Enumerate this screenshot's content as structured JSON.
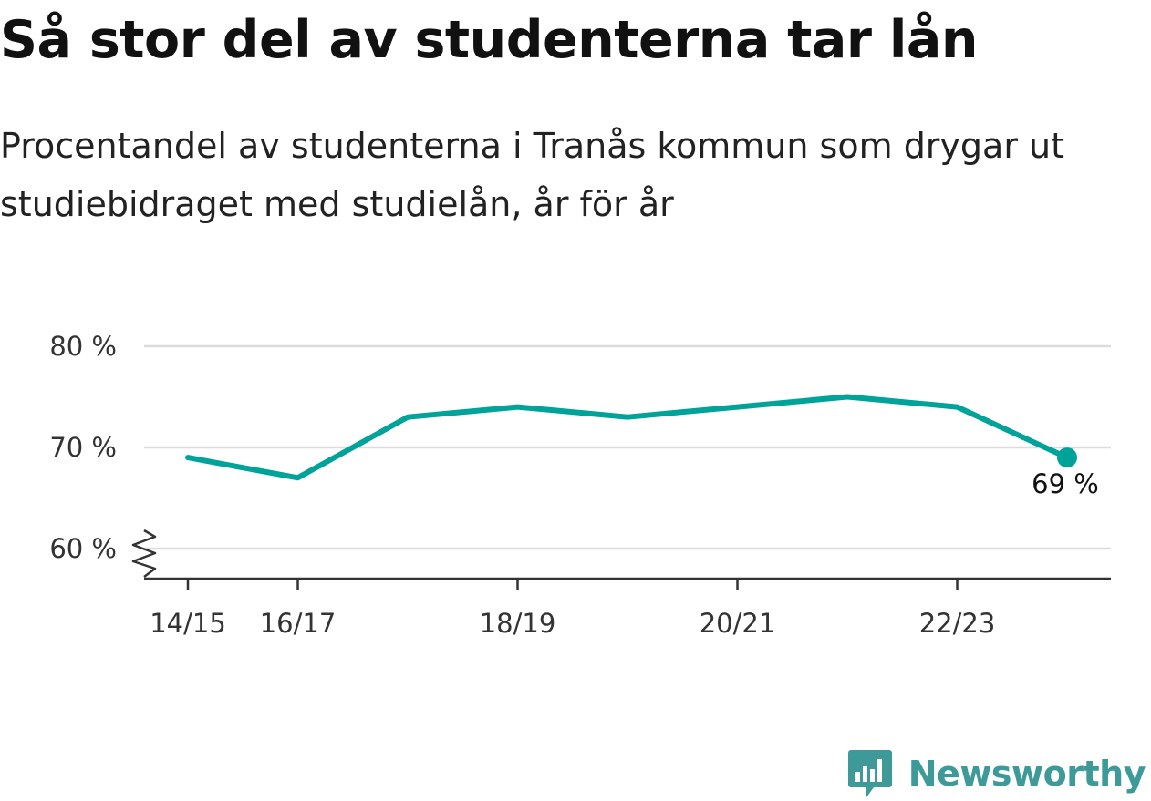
{
  "title": "Så stor del av studenterna tar lån",
  "subtitle": "Procentandel av studenterna i Tranås kommun som drygar ut studiebidraget med studielån, år för år",
  "brand": {
    "name": "Newsworthy",
    "logo_icon": "bar-chart-speech-bubble-icon",
    "color": "#3d9a99"
  },
  "chart_data": {
    "type": "line",
    "x": [
      "14/15",
      "16/17",
      "17/18",
      "18/19",
      "19/20",
      "20/21",
      "21/22",
      "22/23",
      "23/24"
    ],
    "series": [
      {
        "values": [
          69,
          67,
          73,
          74,
          73,
          74,
          75,
          74,
          69
        ],
        "color": "#00a39a"
      }
    ],
    "x_tick_labels": [
      "14/15",
      "16/17",
      "18/19",
      "20/21",
      "22/23"
    ],
    "y_ticks": [
      60,
      70,
      80
    ],
    "y_tick_labels": [
      "60 %",
      "70 %",
      "80 %"
    ],
    "ylim": [
      60,
      80
    ],
    "y_axis_break": true,
    "grid": true,
    "last_point_label": "69 %"
  }
}
